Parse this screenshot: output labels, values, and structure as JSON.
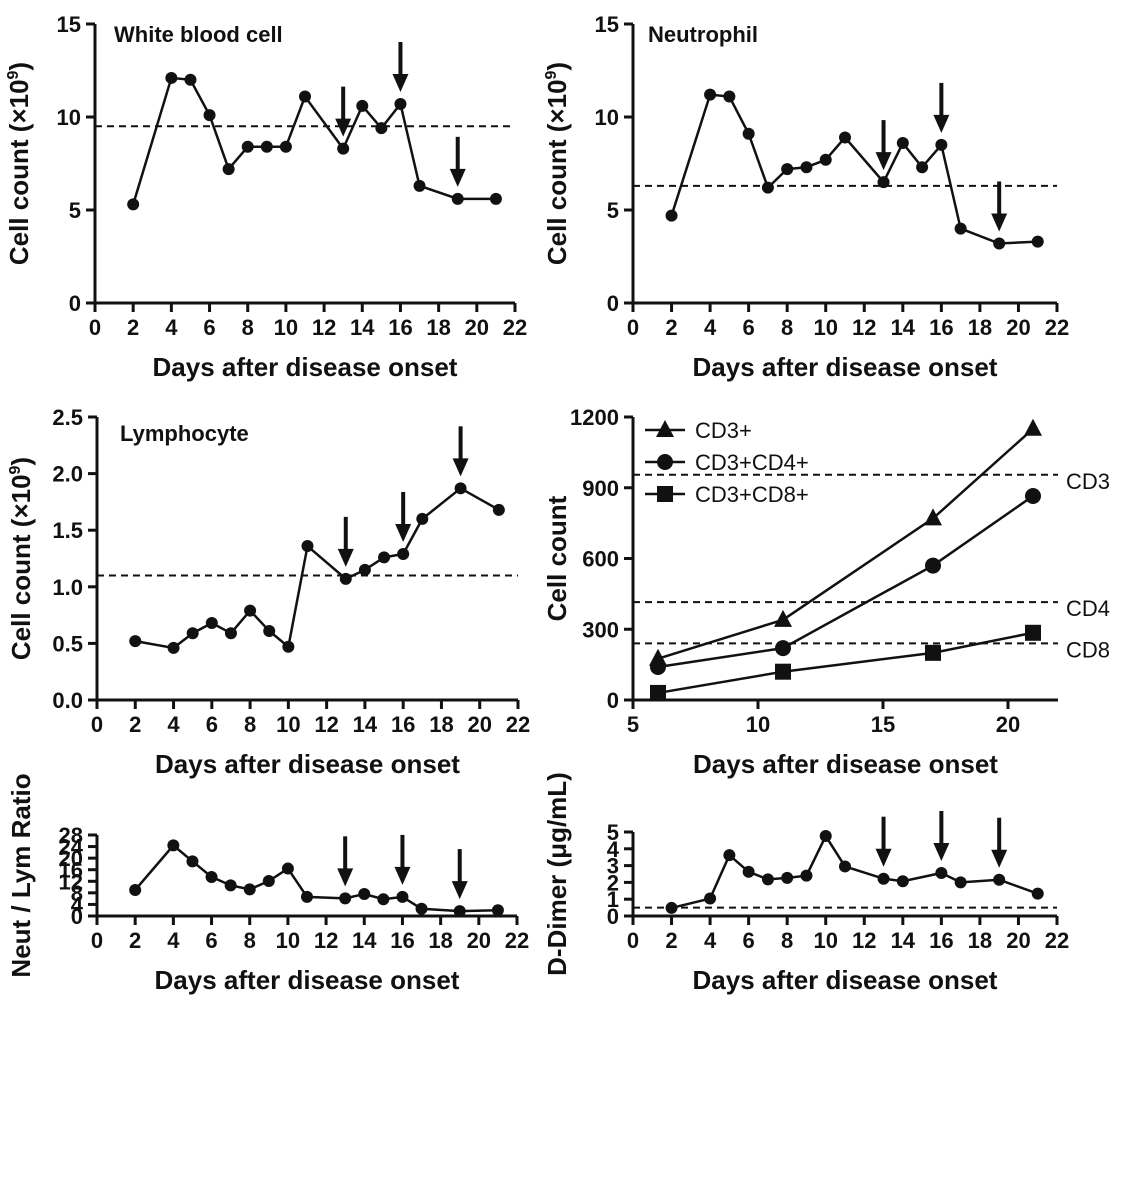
{
  "chart_data": [
    {
      "type": "line",
      "title": "White blood cell",
      "xlabel": "Days after disease onset",
      "ylabel": "Cell count (×10",
      "ylabel_sup": "9",
      "ylabel_close": ")",
      "xlim": [
        0,
        22
      ],
      "ylim": [
        0,
        15
      ],
      "xticks": [
        0,
        2,
        4,
        6,
        8,
        10,
        12,
        14,
        16,
        18,
        20,
        22
      ],
      "yticks": [
        0,
        5,
        10,
        15
      ],
      "x": [
        2,
        4,
        5,
        6,
        7,
        8,
        9,
        10,
        11,
        13,
        14,
        15,
        16,
        17,
        19,
        21
      ],
      "y": [
        5.3,
        12.1,
        12.0,
        10.1,
        7.2,
        8.4,
        8.4,
        8.4,
        11.1,
        8.3,
        10.6,
        9.4,
        10.7,
        6.3,
        5.6,
        5.6
      ],
      "reference_line": 9.5,
      "arrows_at_days": [
        13,
        16,
        19
      ]
    },
    {
      "type": "line",
      "title": "Neutrophil",
      "xlabel": "Days after disease onset",
      "ylabel": "Cell count (×10",
      "ylabel_sup": "9",
      "ylabel_close": ")",
      "xlim": [
        0,
        22
      ],
      "ylim": [
        0,
        15
      ],
      "xticks": [
        0,
        2,
        4,
        6,
        8,
        10,
        12,
        14,
        16,
        18,
        20,
        22
      ],
      "yticks": [
        0,
        5,
        10,
        15
      ],
      "x": [
        2,
        4,
        5,
        6,
        7,
        8,
        9,
        10,
        11,
        13,
        14,
        15,
        16,
        17,
        19,
        21
      ],
      "y": [
        4.7,
        11.2,
        11.1,
        9.1,
        6.2,
        7.2,
        7.3,
        7.7,
        8.9,
        6.5,
        8.6,
        7.3,
        8.5,
        4.0,
        3.2,
        3.3
      ],
      "reference_line": 6.3,
      "arrows_at_days": [
        13,
        16,
        19
      ]
    },
    {
      "type": "line",
      "title": "Lymphocyte",
      "xlabel": "Days after disease onset",
      "ylabel": "Cell count (×10",
      "ylabel_sup": "9",
      "ylabel_close": ")",
      "xlim": [
        0,
        22
      ],
      "ylim": [
        0,
        2.5
      ],
      "xticks": [
        0,
        2,
        4,
        6,
        8,
        10,
        12,
        14,
        16,
        18,
        20,
        22
      ],
      "yticks": [
        "0.0",
        "0.5",
        "1.0",
        "1.5",
        "2.0",
        "2.5"
      ],
      "x": [
        2,
        4,
        5,
        6,
        7,
        8,
        9,
        10,
        11,
        13,
        14,
        15,
        16,
        17,
        19,
        21
      ],
      "y": [
        0.52,
        0.46,
        0.59,
        0.68,
        0.59,
        0.79,
        0.61,
        0.47,
        1.36,
        1.07,
        1.15,
        1.26,
        1.29,
        1.6,
        1.87,
        1.68
      ],
      "reference_line": 1.1,
      "arrows_at_days": [
        13,
        16,
        19
      ]
    },
    {
      "type": "line",
      "title": "",
      "xlabel": "Days after disease onset",
      "ylabel": "Cell count",
      "xlim": [
        5,
        22
      ],
      "ylim": [
        0,
        1200
      ],
      "xticks": [
        5,
        10,
        15,
        20
      ],
      "yticks": [
        0,
        300,
        600,
        900,
        1200
      ],
      "x": [
        6,
        11,
        17,
        21
      ],
      "series": [
        {
          "name": "CD3+",
          "marker": "triangle",
          "values": [
            175,
            340,
            770,
            1150
          ]
        },
        {
          "name": "CD3+CD4+",
          "marker": "circle",
          "values": [
            140,
            220,
            570,
            865
          ]
        },
        {
          "name": "CD3+CD8+",
          "marker": "square",
          "values": [
            30,
            120,
            200,
            285
          ]
        }
      ],
      "reference_lines": [
        {
          "label": "CD3",
          "value": 955
        },
        {
          "label": "CD4",
          "value": 415
        },
        {
          "label": "CD8",
          "value": 240
        }
      ],
      "legend_position": "top-left"
    },
    {
      "type": "line",
      "title": "",
      "xlabel": "Days after disease onset",
      "ylabel": "Neut / Lym Ratio",
      "xlim": [
        0,
        22
      ],
      "ylim": [
        0,
        28
      ],
      "xticks": [
        0,
        2,
        4,
        6,
        8,
        10,
        12,
        14,
        16,
        18,
        20,
        22
      ],
      "yticks": [
        0,
        4,
        8,
        12,
        16,
        20,
        24,
        28
      ],
      "x": [
        2,
        4,
        5,
        6,
        7,
        8,
        9,
        10,
        11,
        13,
        14,
        15,
        16,
        17,
        19,
        21
      ],
      "y": [
        9.0,
        24.4,
        18.9,
        13.5,
        10.6,
        9.2,
        12.1,
        16.4,
        6.6,
        6.1,
        7.6,
        5.8,
        6.6,
        2.5,
        1.7,
        2.0
      ],
      "arrows_at_days": [
        13,
        16,
        19
      ]
    },
    {
      "type": "line",
      "title": "",
      "xlabel": "Days after disease onset",
      "ylabel": "D-Dimer (μg/mL)",
      "xlim": [
        0,
        22
      ],
      "ylim": [
        0,
        5
      ],
      "xticks": [
        0,
        2,
        4,
        6,
        8,
        10,
        12,
        14,
        16,
        18,
        20,
        22
      ],
      "yticks": [
        0,
        1,
        2,
        3,
        4,
        5
      ],
      "x": [
        2,
        4,
        5,
        6,
        7,
        8,
        9,
        10,
        11,
        13,
        14,
        16,
        17,
        19,
        21
      ],
      "y": [
        0.48,
        1.04,
        3.62,
        2.63,
        2.18,
        2.27,
        2.4,
        4.76,
        2.95,
        2.22,
        2.07,
        2.56,
        2.0,
        2.16,
        1.33
      ],
      "reference_line": 0.5,
      "arrows_at_days": [
        13,
        16,
        19
      ]
    }
  ]
}
